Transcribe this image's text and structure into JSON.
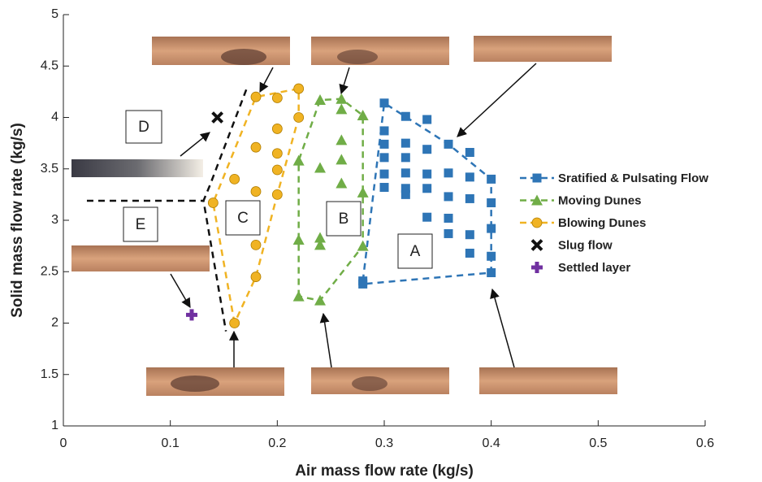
{
  "chart_data": {
    "type": "scatter",
    "x_label": "Air mass flow rate (kg/s)",
    "y_label": "Solid mass flow rate (kg/s)",
    "xlim": [
      0,
      0.6
    ],
    "ylim": [
      1,
      5
    ],
    "xticks": [
      0,
      0.1,
      0.2,
      0.3,
      0.4,
      0.5,
      0.6
    ],
    "yticks": [
      1,
      1.5,
      2,
      2.5,
      3,
      3.5,
      4,
      4.5,
      5
    ],
    "series": [
      {
        "name": "Sratified & Pulsating Flow",
        "color": "#2e75b6",
        "marker": "square",
        "line_style": "dashed",
        "x": [
          0.3,
          0.3,
          0.3,
          0.3,
          0.3,
          0.3,
          0.32,
          0.32,
          0.32,
          0.32,
          0.32,
          0.32,
          0.34,
          0.34,
          0.34,
          0.34,
          0.34,
          0.36,
          0.36,
          0.36,
          0.36,
          0.36,
          0.38,
          0.38,
          0.38,
          0.38,
          0.38,
          0.4,
          0.4,
          0.4,
          0.4,
          0.4,
          0.28,
          0.28
        ],
        "values": [
          4.14,
          3.87,
          3.74,
          3.61,
          3.45,
          3.32,
          4.01,
          3.75,
          3.61,
          3.46,
          3.31,
          3.25,
          3.98,
          3.69,
          3.45,
          3.31,
          3.03,
          3.74,
          3.46,
          3.23,
          3.02,
          2.87,
          3.66,
          3.42,
          3.21,
          2.86,
          2.68,
          3.4,
          3.17,
          2.92,
          2.65,
          2.49,
          2.41,
          2.38
        ]
      },
      {
        "name": "Moving Dunes",
        "color": "#70ad47",
        "marker": "triangle",
        "line_style": "dashed",
        "x": [
          0.22,
          0.22,
          0.22,
          0.24,
          0.24,
          0.24,
          0.24,
          0.24,
          0.26,
          0.26,
          0.26,
          0.26,
          0.26,
          0.28,
          0.28,
          0.28
        ],
        "values": [
          3.58,
          2.81,
          2.26,
          4.17,
          3.51,
          2.83,
          2.76,
          2.22,
          4.18,
          4.08,
          3.78,
          3.59,
          3.36,
          4.02,
          3.27,
          2.75
        ]
      },
      {
        "name": "Blowing Dunes",
        "color": "#f0b323",
        "marker": "circle",
        "line_style": "dashed",
        "x": [
          0.14,
          0.16,
          0.16,
          0.18,
          0.18,
          0.18,
          0.18,
          0.18,
          0.2,
          0.2,
          0.2,
          0.2,
          0.2,
          0.22,
          0.22
        ],
        "values": [
          3.17,
          3.4,
          2.0,
          4.2,
          3.71,
          3.28,
          2.76,
          2.45,
          4.19,
          3.89,
          3.65,
          3.49,
          3.25,
          4.28,
          4.0
        ]
      },
      {
        "name": "Slug flow",
        "color": "#111111",
        "marker": "x",
        "line_style": "none",
        "x": [
          0.144
        ],
        "values": [
          4.0
        ]
      },
      {
        "name": "Settled layer",
        "color": "#7030a0",
        "marker": "plus",
        "line_style": "none",
        "x": [
          0.12
        ],
        "values": [
          2.08
        ]
      }
    ],
    "boundaries": [
      {
        "color": "#2e75b6",
        "x": [
          0.28,
          0.3,
          0.36,
          0.4,
          0.4,
          0.28,
          0.28
        ],
        "y": [
          2.41,
          4.14,
          3.74,
          3.4,
          2.49,
          2.38,
          2.41
        ]
      },
      {
        "color": "#70ad47",
        "x": [
          0.22,
          0.22,
          0.24,
          0.26,
          0.28,
          0.28,
          0.24,
          0.22
        ],
        "y": [
          2.26,
          3.58,
          4.17,
          4.18,
          4.02,
          2.75,
          2.22,
          2.26
        ]
      },
      {
        "color": "#f0b323",
        "x": [
          0.16,
          0.14,
          0.18,
          0.22,
          0.22,
          0.2,
          0.18,
          0.16
        ],
        "y": [
          2.0,
          3.17,
          4.2,
          4.28,
          4.0,
          3.25,
          2.45,
          2.0
        ]
      },
      {
        "color": "#111111",
        "x": [
          0.171,
          0.137,
          0.131,
          0.152,
          null,
          0.022,
          0.131
        ],
        "y": [
          4.27,
          3.34,
          3.19,
          1.92,
          null,
          3.19,
          3.19
        ]
      }
    ],
    "region_labels": [
      "A",
      "B",
      "C",
      "D",
      "E"
    ]
  }
}
